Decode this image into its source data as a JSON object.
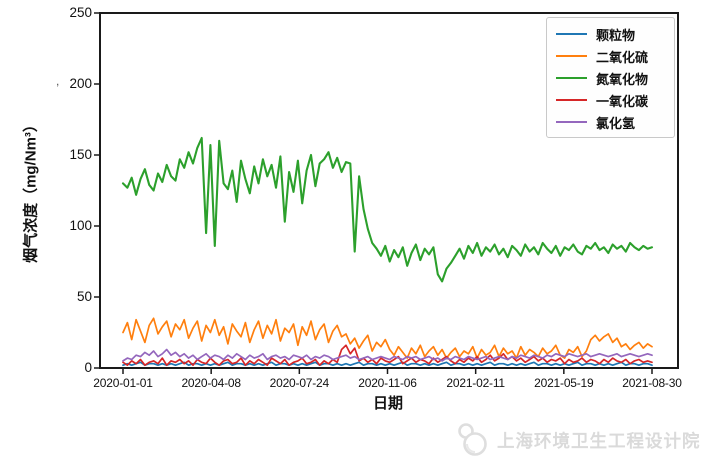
{
  "watermark": {
    "text": "上海环境卫生工程设计院"
  },
  "annotations": {
    "stray_mark": ","
  },
  "chart_data": {
    "type": "line",
    "title": "",
    "xlabel": "日期",
    "ylabel": "烟气浓度（mg/Nm³）",
    "ylim": [
      0,
      250
    ],
    "yticks": [
      0,
      50,
      100,
      150,
      200,
      250
    ],
    "xticks": [
      "2020-01-01",
      "2020-04-08",
      "2020-07-24",
      "2020-11-06",
      "2021-02-11",
      "2021-05-19",
      "2021-08-30"
    ],
    "x_start": "2020-01-01",
    "x_end": "2021-08-30",
    "x_sample_interval_days": 5,
    "grid": false,
    "legend_position": "upper right",
    "series": [
      {
        "name": "颗粒物",
        "color": "#1f77b4",
        "values": [
          2,
          3,
          2,
          3,
          4,
          2,
          3,
          3,
          2,
          3,
          2,
          3,
          2,
          3,
          4,
          2,
          3,
          3,
          2,
          3,
          2,
          3,
          2,
          3,
          4,
          2,
          3,
          3,
          2,
          3,
          2,
          3,
          2,
          3,
          4,
          2,
          3,
          3,
          2,
          3,
          2,
          3,
          2,
          3,
          4,
          2,
          3,
          3,
          2,
          3,
          2,
          3,
          2,
          3,
          4,
          2,
          3,
          3,
          2,
          3,
          2,
          3,
          2,
          3,
          4,
          2,
          3,
          3,
          2,
          3,
          2,
          3,
          2,
          3,
          4,
          2,
          3,
          3,
          2,
          3,
          2,
          3,
          2,
          3,
          4,
          2,
          3,
          3,
          2,
          3,
          2,
          3,
          2,
          3,
          4,
          2,
          3,
          3,
          2,
          3,
          2,
          3,
          2,
          3,
          4,
          2,
          3,
          3,
          2,
          3,
          2,
          3,
          2,
          3,
          4,
          2,
          3,
          3,
          2,
          3,
          3,
          2
        ]
      },
      {
        "name": "二氧化硫",
        "color": "#ff7f0e",
        "values": [
          25,
          32,
          20,
          34,
          26,
          18,
          30,
          35,
          24,
          29,
          33,
          22,
          31,
          27,
          34,
          21,
          28,
          33,
          19,
          30,
          25,
          34,
          23,
          29,
          17,
          31,
          26,
          22,
          32,
          18,
          27,
          33,
          21,
          30,
          24,
          34,
          19,
          28,
          25,
          31,
          16,
          29,
          23,
          33,
          20,
          27,
          31,
          18,
          26,
          30,
          22,
          24,
          17,
          21,
          14,
          19,
          23,
          12,
          18,
          15,
          20,
          13,
          9,
          15,
          11,
          7,
          14,
          10,
          16,
          8,
          12,
          15,
          9,
          13,
          7,
          11,
          14,
          8,
          12,
          10,
          15,
          7,
          13,
          9,
          11,
          16,
          8,
          14,
          10,
          12,
          7,
          15,
          9,
          13,
          11,
          8,
          14,
          10,
          12,
          16,
          9,
          7,
          13,
          11,
          15,
          8,
          12,
          20,
          23,
          19,
          22,
          24,
          18,
          21,
          15,
          17,
          13,
          16,
          18,
          14,
          17,
          15
        ]
      },
      {
        "name": "氮氧化物",
        "color": "#2ca02c",
        "values": [
          130,
          127,
          134,
          122,
          133,
          140,
          129,
          125,
          137,
          131,
          143,
          135,
          132,
          147,
          141,
          152,
          144,
          155,
          162,
          95,
          157,
          86,
          160,
          130,
          126,
          139,
          117,
          146,
          133,
          123,
          142,
          130,
          147,
          135,
          143,
          127,
          149,
          103,
          138,
          124,
          146,
          116,
          139,
          150,
          128,
          144,
          147,
          152,
          141,
          148,
          138,
          145,
          144,
          82,
          135,
          112,
          98,
          88,
          84,
          79,
          86,
          75,
          83,
          78,
          85,
          72,
          81,
          87,
          76,
          84,
          80,
          85,
          66,
          61,
          70,
          74,
          79,
          84,
          77,
          86,
          81,
          88,
          79,
          85,
          82,
          87,
          80,
          84,
          78,
          86,
          83,
          79,
          87,
          82,
          85,
          80,
          88,
          84,
          81,
          86,
          79,
          85,
          83,
          87,
          82,
          80,
          86,
          84,
          88,
          83,
          85,
          81,
          87,
          84,
          86,
          82,
          88,
          85,
          83,
          86,
          84,
          85
        ]
      },
      {
        "name": "一氧化碳",
        "color": "#d62728",
        "values": [
          4,
          2,
          5,
          3,
          6,
          2,
          4,
          5,
          3,
          7,
          2,
          5,
          4,
          6,
          3,
          5,
          2,
          6,
          4,
          3,
          7,
          4,
          2,
          5,
          6,
          3,
          4,
          7,
          2,
          5,
          3,
          6,
          4,
          2,
          7,
          5,
          3,
          6,
          2,
          4,
          5,
          7,
          3,
          4,
          6,
          2,
          5,
          3,
          6,
          4,
          13,
          16,
          10,
          14,
          5,
          7,
          4,
          6,
          3,
          7,
          5,
          4,
          6,
          8,
          3,
          5,
          7,
          4,
          6,
          5,
          3,
          7,
          4,
          6,
          8,
          5,
          3,
          6,
          4,
          7,
          5,
          8,
          4,
          6,
          9,
          5,
          7,
          10,
          6,
          8,
          5,
          7,
          4,
          6,
          8,
          5,
          7,
          4,
          6,
          5,
          7,
          3,
          6,
          4,
          5,
          7,
          4,
          6,
          5,
          3,
          6,
          4,
          7,
          5,
          4,
          6,
          3,
          5,
          6,
          4,
          5,
          4
        ]
      },
      {
        "name": "氯化氢",
        "color": "#9467bd",
        "values": [
          5,
          7,
          6,
          9,
          8,
          11,
          9,
          12,
          8,
          10,
          13,
          9,
          11,
          8,
          10,
          7,
          9,
          6,
          8,
          10,
          7,
          9,
          8,
          6,
          9,
          7,
          10,
          8,
          6,
          9,
          7,
          8,
          10,
          6,
          8,
          9,
          7,
          8,
          6,
          9,
          8,
          7,
          9,
          6,
          8,
          7,
          9,
          8,
          6,
          7,
          8,
          9,
          7,
          8,
          6,
          7,
          8,
          6,
          7,
          8,
          7,
          6,
          8,
          7,
          6,
          8,
          7,
          8,
          6,
          7,
          8,
          6,
          7,
          5,
          7,
          6,
          8,
          7,
          6,
          8,
          7,
          6,
          7,
          8,
          6,
          7,
          8,
          7,
          6,
          8,
          7,
          9,
          8,
          7,
          9,
          8,
          7,
          9,
          8,
          10,
          9,
          8,
          10,
          9,
          8,
          9,
          10,
          8,
          9,
          10,
          9,
          8,
          9,
          10,
          8,
          9,
          10,
          9,
          8,
          9,
          10,
          9
        ]
      }
    ]
  }
}
